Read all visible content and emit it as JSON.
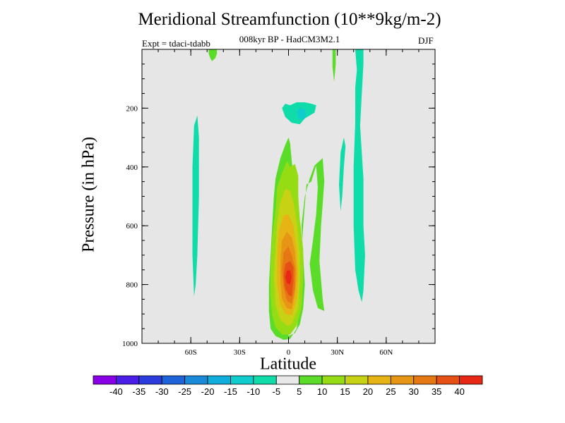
{
  "chart_data": {
    "type": "contour",
    "title": "Meridional Streamfunction (10**9kg/m-2)",
    "subtitle": "008kyr BP - HadCM3M2.1",
    "left_label": "Expt = tdaci-tdabb",
    "right_label": "DJF",
    "xlabel": "Latitude",
    "ylabel": "Pressure (in hPa)",
    "xlim": [
      -90,
      90
    ],
    "ylim": [
      1000,
      0
    ],
    "x_ticks": [
      {
        "value": -60,
        "label": "60S"
      },
      {
        "value": -30,
        "label": "30S"
      },
      {
        "value": 0,
        "label": "0"
      },
      {
        "value": 30,
        "label": "30N"
      },
      {
        "value": 60,
        "label": "60N"
      }
    ],
    "y_ticks": [
      {
        "value": 200,
        "label": "200"
      },
      {
        "value": 400,
        "label": "400"
      },
      {
        "value": 600,
        "label": "600"
      },
      {
        "value": 800,
        "label": "800"
      },
      {
        "value": 1000,
        "label": "1000"
      }
    ],
    "background_color": "#e6e6e6",
    "contour_levels": [
      -40,
      -35,
      -30,
      -25,
      -20,
      -15,
      -10,
      -5,
      5,
      10,
      15,
      20,
      25,
      30,
      35,
      40
    ],
    "colorbar_colors": [
      "#8a00e6",
      "#4a1ee6",
      "#2a3cdc",
      "#1e64d8",
      "#1a8ad8",
      "#10aedc",
      "#10cccc",
      "#10dcaa",
      "#e8e8e8",
      "#5adc28",
      "#96dc14",
      "#c8d214",
      "#e6b414",
      "#e69614",
      "#e67814",
      "#e65014",
      "#e62814"
    ],
    "regions": [
      {
        "name": "sh-upper-positive-cell",
        "color": "#5adc28",
        "points": [
          [
            -49,
            0
          ],
          [
            -44,
            0
          ],
          [
            -44,
            15
          ],
          [
            -45,
            30
          ],
          [
            -47,
            40
          ],
          [
            -48,
            30
          ],
          [
            -49,
            15
          ]
        ]
      },
      {
        "name": "sh-midlat-negative-cell",
        "color": "#10dcaa",
        "points": [
          [
            -58,
            260
          ],
          [
            -56,
            225
          ],
          [
            -55,
            300
          ],
          [
            -55,
            500
          ],
          [
            -56,
            700
          ],
          [
            -57,
            800
          ],
          [
            -58,
            840
          ],
          [
            -59,
            700
          ],
          [
            -59,
            400
          ]
        ]
      },
      {
        "name": "equatorial-upper-negative-cell",
        "color": "#10dcaa",
        "points": [
          [
            -4,
            200
          ],
          [
            -2,
            185
          ],
          [
            1,
            190
          ],
          [
            5,
            180
          ],
          [
            10,
            180
          ],
          [
            14,
            185
          ],
          [
            17,
            190
          ],
          [
            16,
            215
          ],
          [
            10,
            235
          ],
          [
            7,
            255
          ],
          [
            2,
            250
          ],
          [
            -2,
            230
          ]
        ]
      },
      {
        "name": "equatorial-upper-inner",
        "color": "#10cccc",
        "points": [
          [
            5,
            210
          ],
          [
            7,
            200
          ],
          [
            10,
            205
          ],
          [
            11,
            225
          ],
          [
            9,
            240
          ],
          [
            6,
            235
          ]
        ]
      },
      {
        "name": "hadley-cell-positive",
        "color": "#5adc28",
        "points": [
          [
            0,
            975
          ],
          [
            4,
            965
          ],
          [
            7,
            935
          ],
          [
            9,
            880
          ],
          [
            10,
            800
          ],
          [
            9,
            700
          ],
          [
            8,
            600
          ],
          [
            10,
            500
          ],
          [
            13,
            440
          ],
          [
            16,
            395
          ],
          [
            21,
            370
          ],
          [
            22,
            450
          ],
          [
            20,
            600
          ],
          [
            19,
            720
          ],
          [
            21,
            850
          ],
          [
            22,
            890
          ],
          [
            18,
            880
          ],
          [
            15,
            820
          ],
          [
            13,
            730
          ],
          [
            15,
            650
          ],
          [
            17,
            560
          ],
          [
            18,
            470
          ],
          [
            17,
            395
          ],
          [
            14,
            450
          ],
          [
            11,
            460
          ],
          [
            9,
            600
          ],
          [
            8,
            700
          ],
          [
            8,
            800
          ],
          [
            7,
            880
          ],
          [
            5,
            950
          ],
          [
            1,
            985
          ],
          [
            -3,
            988
          ],
          [
            -8,
            975
          ],
          [
            -11,
            950
          ],
          [
            -12,
            890
          ],
          [
            -12,
            800
          ],
          [
            -11,
            700
          ],
          [
            -10,
            600
          ],
          [
            -9,
            500
          ],
          [
            -8,
            440
          ],
          [
            -5,
            370
          ],
          [
            -2,
            325
          ],
          [
            0,
            300
          ],
          [
            1,
            320
          ],
          [
            2,
            380
          ],
          [
            3,
            440
          ],
          [
            3,
            500
          ],
          [
            4,
            560
          ]
        ]
      },
      {
        "name": "hadley-cell-10",
        "color": "#96dc14",
        "points": [
          [
            1,
            970
          ],
          [
            5,
            940
          ],
          [
            8,
            880
          ],
          [
            9,
            780
          ],
          [
            9,
            680
          ],
          [
            7,
            580
          ],
          [
            6,
            500
          ],
          [
            6,
            430
          ],
          [
            4,
            390
          ],
          [
            1,
            400
          ],
          [
            -1,
            380
          ],
          [
            -2,
            395
          ],
          [
            -4,
            420
          ],
          [
            -7,
            470
          ],
          [
            -8,
            550
          ],
          [
            -10,
            640
          ],
          [
            -11,
            740
          ],
          [
            -11,
            840
          ],
          [
            -10,
            905
          ],
          [
            -8,
            945
          ],
          [
            -4,
            970
          ]
        ]
      },
      {
        "name": "hadley-cell-15",
        "color": "#c8d214",
        "points": [
          [
            2,
            935
          ],
          [
            6,
            880
          ],
          [
            7,
            790
          ],
          [
            7,
            690
          ],
          [
            5,
            580
          ],
          [
            3,
            520
          ],
          [
            1,
            480
          ],
          [
            -2,
            475
          ],
          [
            -5,
            520
          ],
          [
            -7,
            590
          ],
          [
            -8,
            680
          ],
          [
            -9,
            780
          ],
          [
            -8,
            870
          ],
          [
            -5,
            920
          ],
          [
            -1,
            940
          ]
        ]
      },
      {
        "name": "hadley-cell-20",
        "color": "#e6b414",
        "points": [
          [
            2,
            905
          ],
          [
            5,
            850
          ],
          [
            6,
            770
          ],
          [
            5,
            680
          ],
          [
            3,
            600
          ],
          [
            0,
            560
          ],
          [
            -3,
            565
          ],
          [
            -6,
            620
          ],
          [
            -7,
            710
          ],
          [
            -7,
            800
          ],
          [
            -5,
            870
          ],
          [
            -2,
            900
          ]
        ]
      },
      {
        "name": "hadley-cell-25",
        "color": "#e69614",
        "points": [
          [
            2,
            885
          ],
          [
            4,
            830
          ],
          [
            5,
            760
          ],
          [
            4,
            690
          ],
          [
            2,
            640
          ],
          [
            -1,
            620
          ],
          [
            -4,
            650
          ],
          [
            -5,
            720
          ],
          [
            -5,
            790
          ],
          [
            -4,
            850
          ],
          [
            -1,
            880
          ]
        ]
      },
      {
        "name": "hadley-cell-30",
        "color": "#e67814",
        "points": [
          [
            2,
            865
          ],
          [
            4,
            810
          ],
          [
            4,
            745
          ],
          [
            2,
            700
          ],
          [
            0,
            670
          ],
          [
            -3,
            690
          ],
          [
            -4,
            750
          ],
          [
            -3,
            810
          ],
          [
            -1,
            855
          ]
        ]
      },
      {
        "name": "hadley-cell-35",
        "color": "#e65014",
        "points": [
          [
            2,
            840
          ],
          [
            3,
            790
          ],
          [
            3,
            740
          ],
          [
            1,
            720
          ],
          [
            -2,
            730
          ],
          [
            -3,
            770
          ],
          [
            -2,
            815
          ],
          [
            0,
            835
          ]
        ]
      },
      {
        "name": "hadley-cell-40",
        "color": "#e62814",
        "points": [
          [
            1,
            800
          ],
          [
            2,
            775
          ],
          [
            1,
            752
          ],
          [
            -1,
            752
          ],
          [
            -2,
            775
          ],
          [
            -1,
            795
          ]
        ]
      },
      {
        "name": "nh-upper-thin-positive",
        "color": "#5adc28",
        "points": [
          [
            27,
            0
          ],
          [
            29,
            0
          ],
          [
            29,
            50
          ],
          [
            28,
            110
          ],
          [
            27,
            60
          ]
        ]
      },
      {
        "name": "nh-ferrel-negative-west",
        "color": "#10dcaa",
        "points": [
          [
            32,
            550
          ],
          [
            33,
            500
          ],
          [
            34,
            400
          ],
          [
            35,
            330
          ],
          [
            34,
            300
          ],
          [
            32,
            350
          ],
          [
            31,
            460
          ]
        ]
      },
      {
        "name": "nh-negative-cell",
        "color": "#10dcaa",
        "points": [
          [
            41,
            0
          ],
          [
            46,
            0
          ],
          [
            46,
            50
          ],
          [
            45,
            150
          ],
          [
            44,
            260
          ],
          [
            46,
            440
          ],
          [
            46,
            600
          ],
          [
            47,
            700
          ],
          [
            46,
            820
          ],
          [
            45,
            860
          ],
          [
            43,
            820
          ],
          [
            41,
            750
          ],
          [
            40,
            600
          ],
          [
            40,
            400
          ],
          [
            41,
            250
          ],
          [
            41,
            130
          ],
          [
            42,
            70
          ]
        ]
      }
    ]
  },
  "colorbar": {
    "labels": [
      "-40",
      "-35",
      "-30",
      "-25",
      "-20",
      "-15",
      "-10",
      "-5",
      "5",
      "10",
      "15",
      "20",
      "25",
      "30",
      "35",
      "40"
    ]
  }
}
